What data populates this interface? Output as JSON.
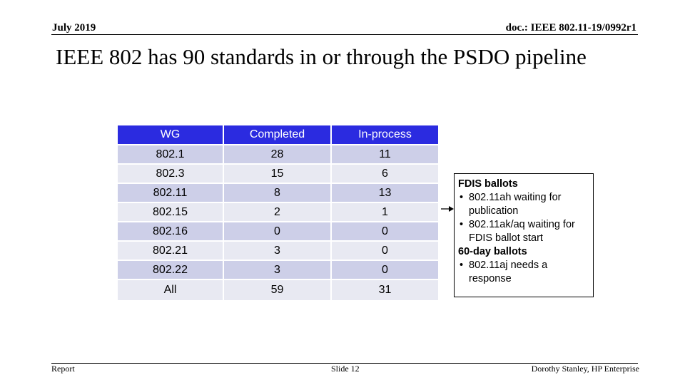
{
  "header": {
    "date": "July 2019",
    "doc": "doc.: IEEE 802.11-19/0992r1"
  },
  "title": "IEEE 802 has 90 standards in or through the PSDO pipeline",
  "table": {
    "columns": [
      "WG",
      "Completed",
      "In-process"
    ],
    "rows": [
      [
        "802.1",
        "28",
        "11"
      ],
      [
        "802.3",
        "15",
        "6"
      ],
      [
        "802.11",
        "8",
        "13"
      ],
      [
        "802.15",
        "2",
        "1"
      ],
      [
        "802.16",
        "0",
        "0"
      ],
      [
        "802.21",
        "3",
        "0"
      ],
      [
        "802.22",
        "3",
        "0"
      ],
      [
        "All",
        "59",
        "31"
      ]
    ]
  },
  "note": {
    "heading1": "FDIS ballots",
    "items1": [
      "802.11ah waiting for publication",
      "802.11ak/aq waiting for FDIS ballot start"
    ],
    "heading2": "60-day ballots",
    "items2": [
      "802.11aj needs a response"
    ]
  },
  "footer": {
    "left": "Report",
    "center": "Slide 12",
    "right": "Dorothy Stanley, HP Enterprise"
  },
  "colors": {
    "header_fill": "#2B2BE0",
    "row_fill": "#CDCFE8",
    "row_alt_fill": "#E8E9F2"
  }
}
